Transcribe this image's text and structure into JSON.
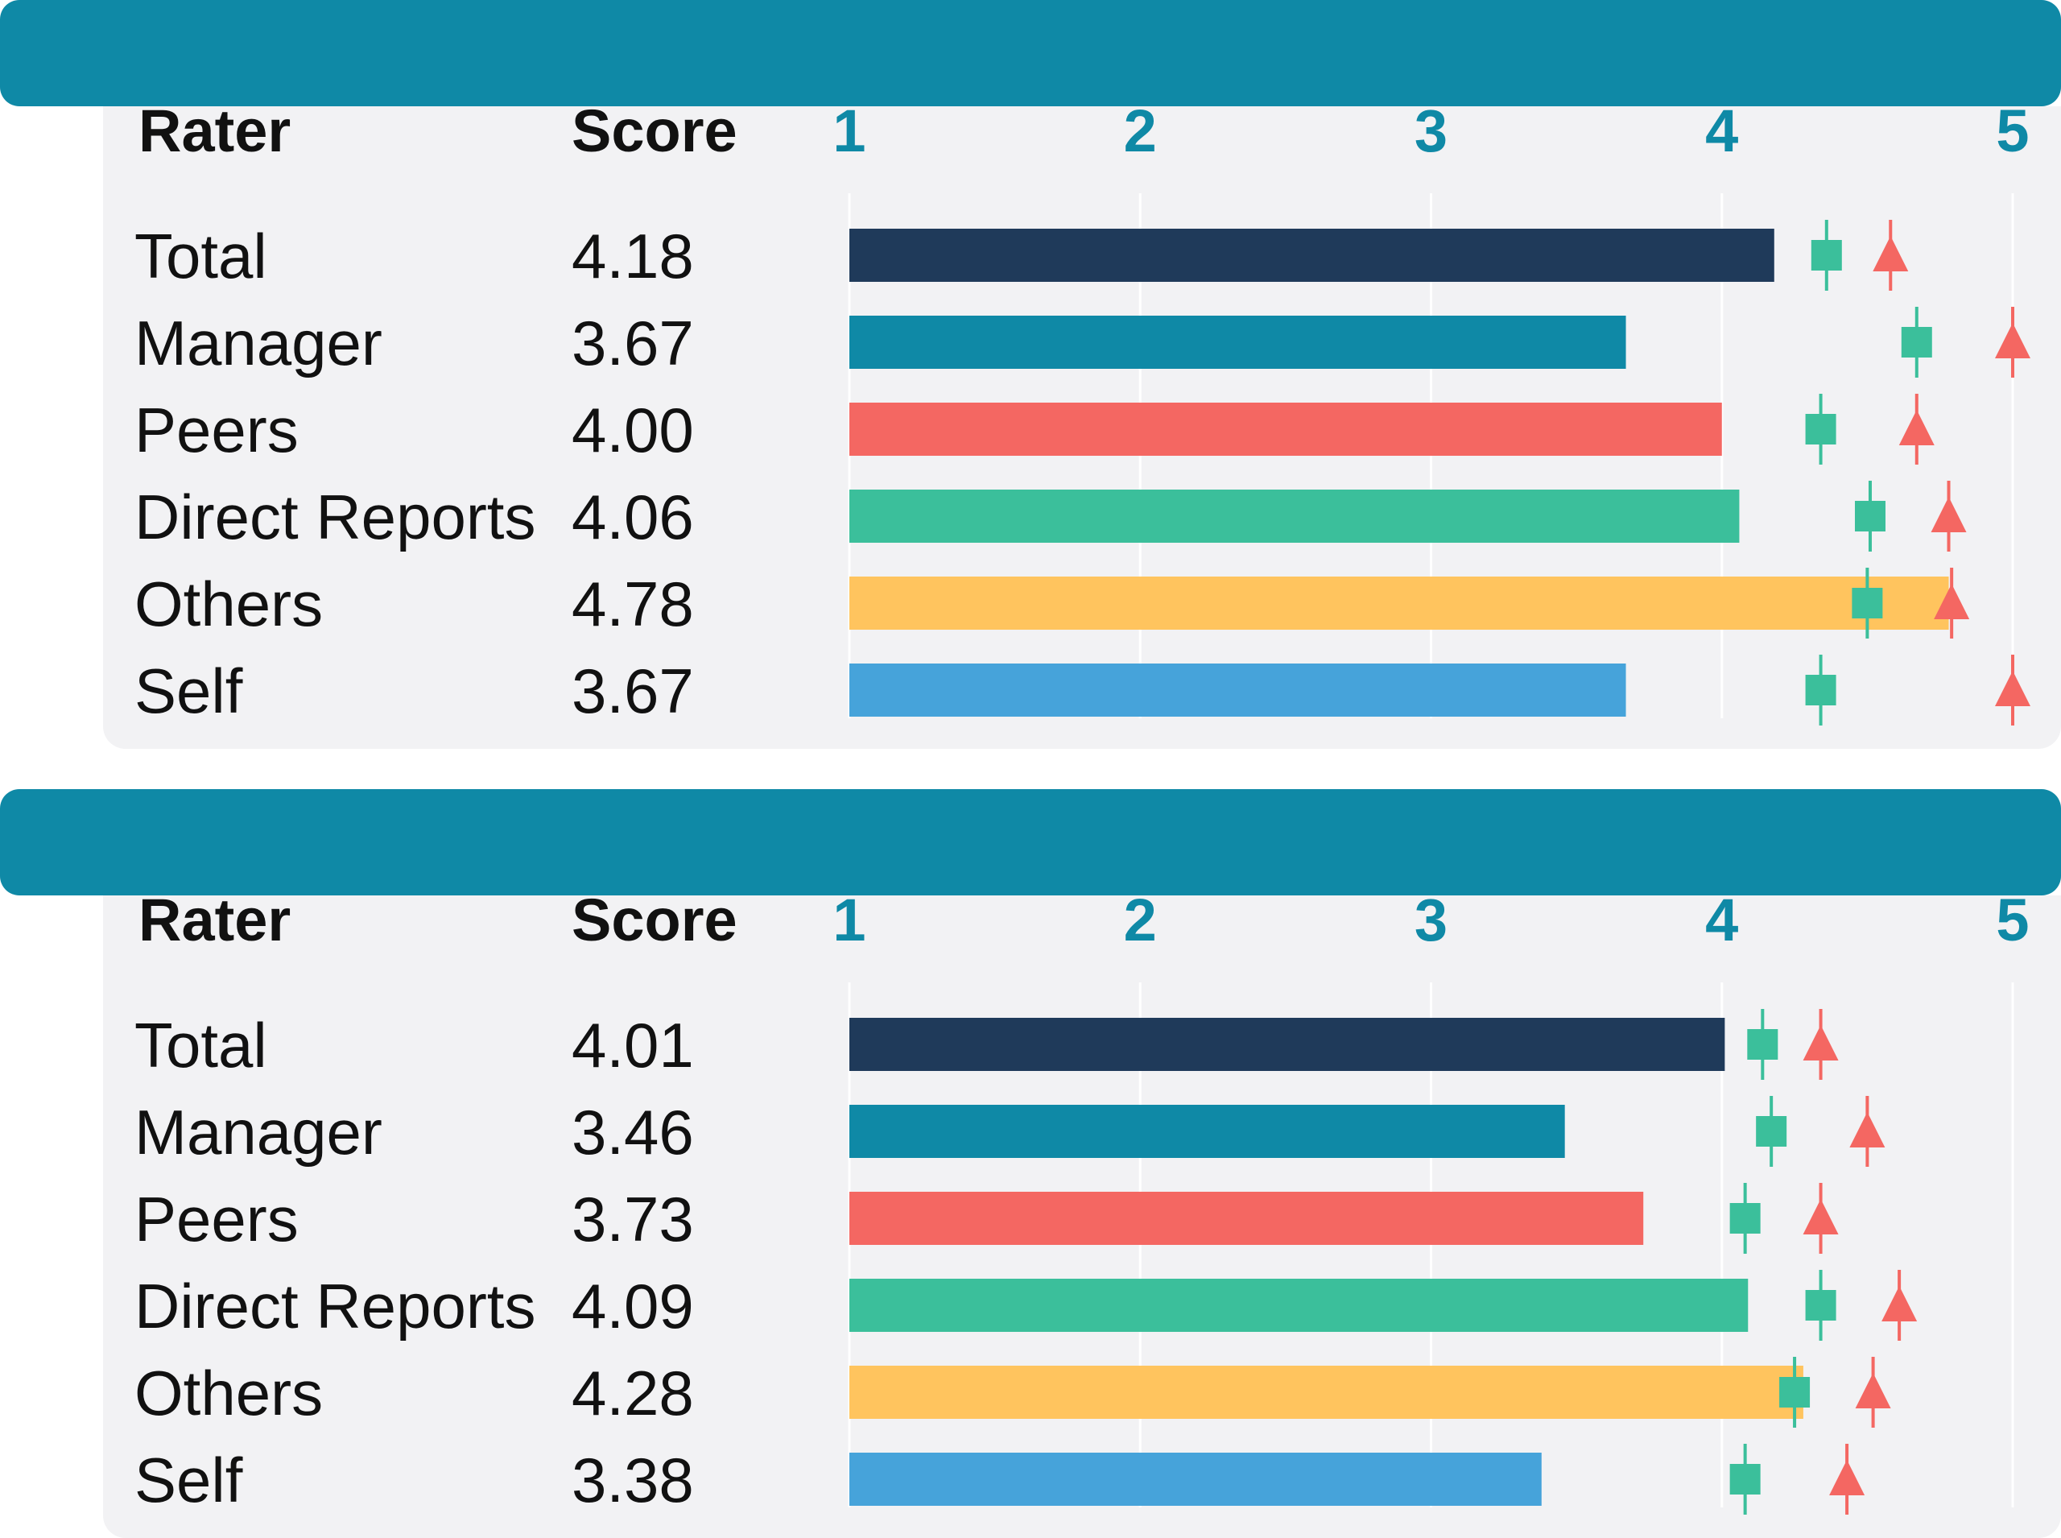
{
  "colors": {
    "band": "#0f89a6",
    "panel": "#f2f2f4",
    "gridline": "#ffffff",
    "tick_label": "#0f89a6",
    "marker_square": "#3bbf9b",
    "marker_triangle": "#f46762"
  },
  "chart_data": [
    {
      "type": "bar",
      "orientation": "horizontal",
      "title": "",
      "column_headers": {
        "rater": "Rater",
        "score": "Score"
      },
      "xlim": [
        1,
        5
      ],
      "ticks": [
        "1",
        "2",
        "3",
        "4",
        "5"
      ],
      "grid": true,
      "categories": [
        "Total",
        "Manager",
        "Peers",
        "Direct Reports",
        "Others",
        "Self"
      ],
      "scores": [
        "4.18",
        "3.67",
        "4.00",
        "4.06",
        "4.78",
        "3.67"
      ],
      "values": [
        4.18,
        3.67,
        4.0,
        4.06,
        4.78,
        3.67
      ],
      "bar_colors": [
        "#1f3a5a",
        "#0f89a6",
        "#f46762",
        "#3bbf9b",
        "#ffc45e",
        "#46a3da"
      ],
      "marker_square": [
        4.36,
        4.67,
        4.34,
        4.51,
        4.5,
        4.34
      ],
      "marker_triangle": [
        4.58,
        5.0,
        4.67,
        4.78,
        4.79,
        5.0
      ]
    },
    {
      "type": "bar",
      "orientation": "horizontal",
      "title": "",
      "column_headers": {
        "rater": "Rater",
        "score": "Score"
      },
      "xlim": [
        1,
        5
      ],
      "ticks": [
        "1",
        "2",
        "3",
        "4",
        "5"
      ],
      "grid": true,
      "categories": [
        "Total",
        "Manager",
        "Peers",
        "Direct Reports",
        "Others",
        "Self"
      ],
      "scores": [
        "4.01",
        "3.46",
        "3.73",
        "4.09",
        "4.28",
        "3.38"
      ],
      "values": [
        4.01,
        3.46,
        3.73,
        4.09,
        4.28,
        3.38
      ],
      "bar_colors": [
        "#1f3a5a",
        "#0f89a6",
        "#f46762",
        "#3bbf9b",
        "#ffc45e",
        "#46a3da"
      ],
      "marker_square": [
        4.14,
        4.17,
        4.08,
        4.34,
        4.25,
        4.08
      ],
      "marker_triangle": [
        4.34,
        4.5,
        4.34,
        4.61,
        4.52,
        4.43
      ]
    }
  ]
}
